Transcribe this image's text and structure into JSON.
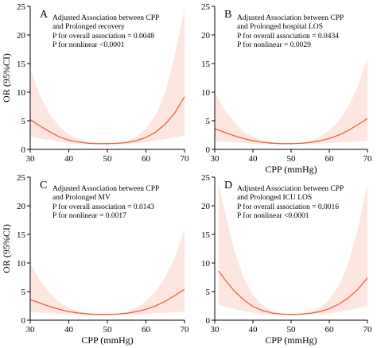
{
  "figure": {
    "y_title": "OR (95%CI)",
    "x_title": "CPP (mmHg)"
  },
  "colors": {
    "line": "#e8613f",
    "band": "#fde6df",
    "axis": "#000000"
  },
  "chart_data": [
    {
      "panel": "A",
      "type": "line",
      "title": "Adjusted Association between CPP and Prolonged recovery",
      "title_lines": [
        "Adjusted Association between CPP",
        "and Prolonged recovery"
      ],
      "annotations": [
        "P for overall association = 0.0048",
        "P for nonlinear  <0.0001"
      ],
      "xlabel": "",
      "ylabel": "OR (95%CI)",
      "xlim": [
        30,
        70
      ],
      "ylim": [
        0,
        25
      ],
      "xticks": [
        30,
        40,
        50,
        60,
        70
      ],
      "yticks": [
        0,
        5,
        10,
        15,
        20,
        25
      ],
      "series": [
        {
          "x": [
            30,
            32.5,
            35,
            37.5,
            40,
            42.5,
            45,
            47.5,
            50,
            52.5,
            55,
            57.5,
            60,
            62.5,
            65,
            67.5,
            70
          ],
          "y": [
            5.2,
            4.1,
            3.1,
            2.2,
            1.6,
            1.3,
            1.05,
            1.0,
            1.0,
            1.05,
            1.2,
            1.5,
            2.1,
            3.0,
            4.4,
            6.4,
            9.2
          ],
          "lower": [
            2.2,
            1.9,
            1.6,
            1.3,
            1.1,
            0.95,
            0.9,
            0.9,
            0.9,
            0.9,
            0.95,
            1.05,
            1.25,
            1.5,
            1.8,
            2.1,
            2.4
          ],
          "upper": [
            14.0,
            9.5,
            6.2,
            4.0,
            2.6,
            1.8,
            1.3,
            1.15,
            1.1,
            1.2,
            1.5,
            2.2,
            3.6,
            6.0,
            10.0,
            16.5,
            24.5
          ]
        }
      ]
    },
    {
      "panel": "B",
      "type": "line",
      "title": "Adjusted Association between CPP and Prolonged hospital LOS",
      "title_lines": [
        "Adjusted Association between CPP",
        "and Prolonged hospital  LOS"
      ],
      "annotations": [
        "P for overall association = 0.0434",
        "P for nonlinear  = 0.0029"
      ],
      "xlabel": "CPP (mmHg)",
      "ylabel": "",
      "xlim": [
        30,
        70
      ],
      "ylim": [
        0,
        25
      ],
      "xticks": [
        30,
        40,
        50,
        60,
        70
      ],
      "yticks": [
        0,
        5,
        10,
        15,
        20,
        25
      ],
      "series": [
        {
          "x": [
            30,
            32.5,
            35,
            37.5,
            40,
            42.5,
            45,
            47.5,
            50,
            52.5,
            55,
            57.5,
            60,
            62.5,
            65,
            67.5,
            70
          ],
          "y": [
            3.6,
            3.0,
            2.4,
            1.9,
            1.5,
            1.25,
            1.08,
            1.0,
            1.0,
            1.05,
            1.2,
            1.5,
            1.9,
            2.5,
            3.3,
            4.3,
            5.4
          ],
          "lower": [
            1.4,
            1.3,
            1.2,
            1.1,
            1.0,
            0.95,
            0.9,
            0.9,
            0.9,
            0.9,
            0.95,
            1.0,
            1.1,
            1.2,
            1.3,
            1.4,
            1.5
          ],
          "upper": [
            10.0,
            7.0,
            4.8,
            3.2,
            2.2,
            1.6,
            1.25,
            1.1,
            1.1,
            1.2,
            1.5,
            2.2,
            3.3,
            5.0,
            7.5,
            11.0,
            16.0
          ]
        }
      ]
    },
    {
      "panel": "C",
      "type": "line",
      "title": "Adjusted Association between CPP and Prolonged MV",
      "title_lines": [
        "Adjusted Association between CPP",
        "and Prolonged MV"
      ],
      "annotations": [
        "P for overall association = 0.0143",
        "P for nonlinear = 0.0017"
      ],
      "xlabel": "CPP (mmHg)",
      "ylabel": "OR (95%CI)",
      "xlim": [
        30,
        70
      ],
      "ylim": [
        0,
        25
      ],
      "xticks": [
        30,
        40,
        50,
        60,
        70
      ],
      "yticks": [
        0,
        5,
        10,
        15,
        20,
        25
      ],
      "series": [
        {
          "x": [
            30,
            32.5,
            35,
            37.5,
            40,
            42.5,
            45,
            47.5,
            50,
            52.5,
            55,
            57.5,
            60,
            62.5,
            65,
            67.5,
            70
          ],
          "y": [
            3.6,
            3.0,
            2.4,
            1.9,
            1.5,
            1.25,
            1.08,
            1.0,
            1.0,
            1.05,
            1.2,
            1.5,
            1.9,
            2.5,
            3.3,
            4.3,
            5.4
          ],
          "lower": [
            1.4,
            1.3,
            1.2,
            1.1,
            1.0,
            0.95,
            0.9,
            0.9,
            0.9,
            0.9,
            0.95,
            1.0,
            1.1,
            1.2,
            1.3,
            1.4,
            1.5
          ],
          "upper": [
            10.0,
            7.0,
            4.8,
            3.2,
            2.2,
            1.6,
            1.25,
            1.1,
            1.1,
            1.2,
            1.5,
            2.2,
            3.3,
            5.0,
            7.5,
            11.0,
            16.0
          ]
        }
      ]
    },
    {
      "panel": "D",
      "type": "line",
      "title": "Adjusted Association between CPP and Prolonged ICU LOS",
      "title_lines": [
        "Adjusted Association between CPP",
        "and Prolonged ICU LOS"
      ],
      "annotations": [
        "P for overall association = 0.0016",
        "P for nonlinear  <0.0001"
      ],
      "xlabel": "CPP (mmHg)",
      "ylabel": "",
      "xlim": [
        30,
        70
      ],
      "ylim": [
        0,
        25
      ],
      "xticks": [
        30,
        40,
        50,
        60,
        70
      ],
      "yticks": [
        0,
        5,
        10,
        15,
        20,
        25
      ],
      "series": [
        {
          "x": [
            31,
            33,
            35,
            37.5,
            40,
            42.5,
            45,
            47.5,
            50,
            52.5,
            55,
            57.5,
            60,
            62.5,
            65,
            67.5,
            70
          ],
          "y": [
            8.6,
            6.8,
            5.2,
            3.6,
            2.4,
            1.7,
            1.25,
            1.05,
            1.0,
            1.05,
            1.2,
            1.5,
            2.0,
            2.8,
            3.9,
            5.4,
            7.4
          ],
          "lower": [
            2.6,
            2.3,
            2.0,
            1.6,
            1.3,
            1.1,
            0.95,
            0.9,
            0.9,
            0.9,
            0.95,
            1.05,
            1.2,
            1.45,
            1.75,
            2.1,
            2.5
          ],
          "upper": [
            24.0,
            18.0,
            12.5,
            7.5,
            4.4,
            2.6,
            1.6,
            1.2,
            1.1,
            1.2,
            1.5,
            2.2,
            3.6,
            6.0,
            10.0,
            16.0,
            24.0
          ]
        }
      ]
    }
  ]
}
